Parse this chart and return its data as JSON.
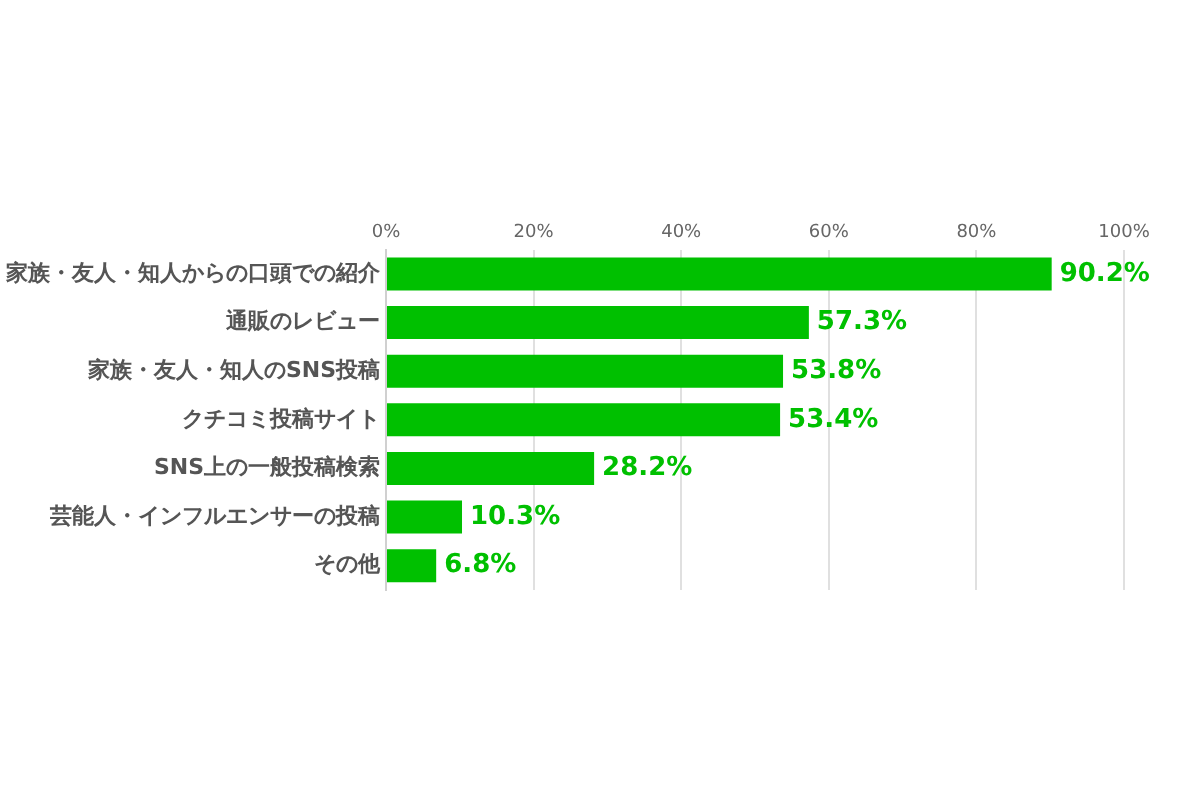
{
  "chart_data": {
    "type": "bar",
    "orientation": "horizontal",
    "categories": [
      "家族・友人・知人からの口頭での紹介",
      "通販のレビュー",
      "家族・友人・知人のSNS投稿",
      "クチコミ投稿サイト",
      "SNS上の一般投稿検索",
      "芸能人・インフルエンサーの投稿",
      "その他"
    ],
    "values": [
      90.2,
      57.3,
      53.8,
      53.4,
      28.2,
      10.3,
      6.8
    ],
    "value_labels": [
      "90.2%",
      "57.3%",
      "53.8%",
      "53.4%",
      "28.2%",
      "10.3%",
      "6.8%"
    ],
    "color": "#00c000",
    "xlim": [
      0,
      100
    ],
    "xticks": [
      {
        "value": 0,
        "label": "0%"
      },
      {
        "value": 20,
        "label": "20%"
      },
      {
        "value": 40,
        "label": "40%"
      },
      {
        "value": 60,
        "label": "60%"
      },
      {
        "value": 80,
        "label": "80%"
      },
      {
        "value": 100,
        "label": "100%"
      }
    ],
    "grid": "x",
    "legend": false
  }
}
